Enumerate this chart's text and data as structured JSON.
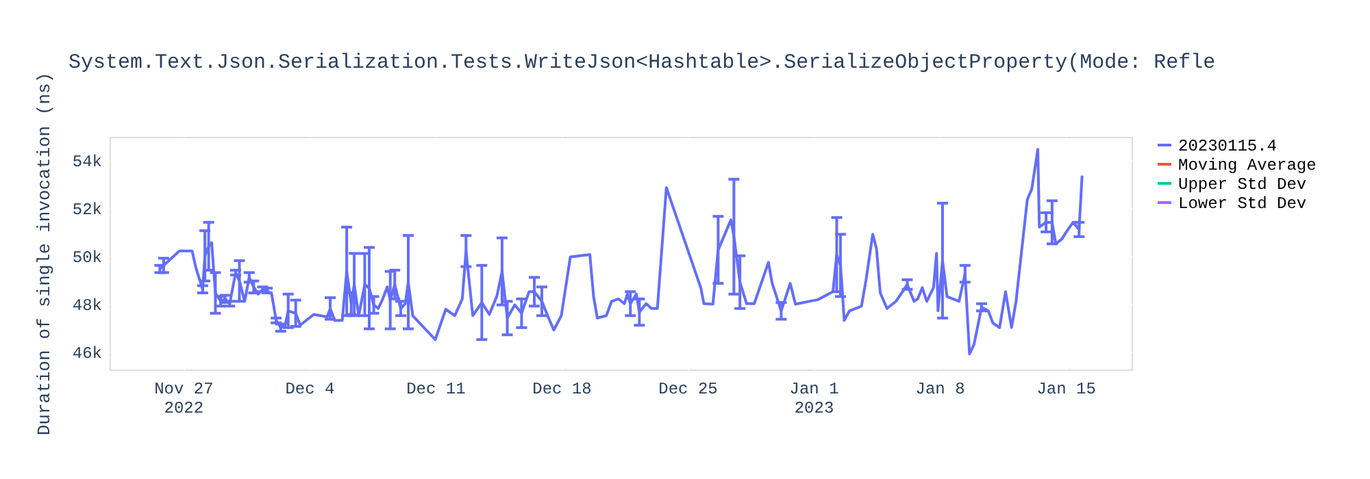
{
  "chart_data": {
    "type": "line",
    "title": "System.Text.Json.Serialization.Tests.WriteJson<Hashtable>.SerializeObjectProperty(Mode: Refle",
    "ylabel": "Duration of single invocation (ns)",
    "x": [
      "2022-11-25T17:00",
      "2022-11-25T22:00",
      "2022-11-26T19:00",
      "2022-11-27T12:00",
      "2022-11-27T17:00",
      "2022-11-28T02:00",
      "2022-11-28T05:00",
      "2022-11-28T10:00",
      "2022-11-28T14:00",
      "2022-11-28T19:00",
      "2022-11-29T02:00",
      "2022-11-29T08:00",
      "2022-11-29T14:00",
      "2022-11-29T22:00",
      "2022-11-30T03:00",
      "2022-11-30T10:00",
      "2022-11-30T16:00",
      "2022-11-30T22:00",
      "2022-12-01T04:00",
      "2022-12-01T10:00",
      "2022-12-01T16:00",
      "2022-12-01T22:00",
      "2022-12-02T04:00",
      "2022-12-02T10:00",
      "2022-12-02T16:00",
      "2022-12-02T20:00",
      "2022-12-03T06:00",
      "2022-12-03T12:00",
      "2022-12-04T06:00",
      "2022-12-05T00:00",
      "2022-12-05T04:00",
      "2022-12-05T10:00",
      "2022-12-05T20:00",
      "2022-12-06T02:00",
      "2022-12-06T08:00",
      "2022-12-06T12:00",
      "2022-12-06T18:00",
      "2022-12-07T02:00",
      "2022-12-07T08:00",
      "2022-12-07T14:00",
      "2022-12-07T20:00",
      "2022-12-08T02:00",
      "2022-12-08T08:00",
      "2022-12-08T12:00",
      "2022-12-08T18:00",
      "2022-12-09T02:00",
      "2022-12-09T08:00",
      "2022-12-09T12:00",
      "2022-12-09T18:00",
      "2022-12-11T00:00",
      "2022-12-11T14:00",
      "2022-12-12T02:00",
      "2022-12-12T12:00",
      "2022-12-12T17:00",
      "2022-12-13T02:00",
      "2022-12-13T14:00",
      "2022-12-14T00:00",
      "2022-12-14T10:00",
      "2022-12-14T17:00",
      "2022-12-15T00:00",
      "2022-12-15T10:00",
      "2022-12-15T19:00",
      "2022-12-16T05:00",
      "2022-12-16T12:00",
      "2022-12-16T22:00",
      "2022-12-17T07:00",
      "2022-12-17T14:00",
      "2022-12-18T00:00",
      "2022-12-18T12:00",
      "2022-12-19T14:00",
      "2022-12-19T19:00",
      "2022-12-20T00:00",
      "2022-12-20T12:00",
      "2022-12-20T19:00",
      "2022-12-21T04:00",
      "2022-12-21T12:00",
      "2022-12-21T16:00",
      "2022-12-21T20:00",
      "2022-12-22T04:00",
      "2022-12-22T08:00",
      "2022-12-22T17:00",
      "2022-12-23T00:00",
      "2022-12-23T08:00",
      "2022-12-23T20:00",
      "2022-12-25T18:00",
      "2022-12-25T22:00",
      "2022-12-26T10:00",
      "2022-12-26T17:00",
      "2022-12-27T10:00",
      "2022-12-27T14:00",
      "2022-12-27T22:00",
      "2022-12-28T07:00",
      "2022-12-28T17:00",
      "2022-12-29T12:00",
      "2022-12-29T17:00",
      "2022-12-30T05:00",
      "2022-12-30T17:00",
      "2022-12-31T00:00",
      "2023-01-01T06:00",
      "2023-01-02T02:00",
      "2023-01-02T07:00",
      "2023-01-02T12:00",
      "2023-01-02T14:00",
      "2023-01-02T17:00",
      "2023-01-03T00:00",
      "2023-01-03T08:00",
      "2023-01-03T16:00",
      "2023-01-03T22:00",
      "2023-01-04T07:00",
      "2023-01-04T12:00",
      "2023-01-04T17:00",
      "2023-01-05T02:00",
      "2023-01-05T14:00",
      "2023-01-06T05:00",
      "2023-01-06T14:00",
      "2023-01-06T19:00",
      "2023-01-07T01:00",
      "2023-01-07T07:00",
      "2023-01-07T16:00",
      "2023-01-07T20:00",
      "2023-01-07T22:00",
      "2023-01-08T04:00",
      "2023-01-08T10:00",
      "2023-01-09T02:00",
      "2023-01-09T10:00",
      "2023-01-09T16:00",
      "2023-01-09T22:00",
      "2023-01-10T08:00",
      "2023-01-10T17:00",
      "2023-01-10T23:00",
      "2023-01-11T08:00",
      "2023-01-11T16:00",
      "2023-01-12T00:00",
      "2023-01-12T06:00",
      "2023-01-12T21:00",
      "2023-01-13T03:00",
      "2023-01-13T11:00",
      "2023-01-13T13:00",
      "2023-01-13T22:00",
      "2023-01-14T06:00",
      "2023-01-14T11:00",
      "2023-01-14T19:00",
      "2023-01-15T01:00",
      "2023-01-15T10:00",
      "2023-01-15T18:00",
      "2023-01-15T22:00"
    ],
    "series": [
      {
        "name": "20230115.4",
        "color": "#636efa",
        "values": [
          49450,
          49600,
          50200,
          50200,
          49500,
          48600,
          50000,
          50400,
          50550,
          48450,
          48100,
          48200,
          48000,
          49300,
          48950,
          48100,
          49100,
          48700,
          48400,
          48600,
          48550,
          48400,
          47300,
          47000,
          47100,
          47700,
          47600,
          47100,
          47550,
          47450,
          47800,
          47300,
          47300,
          49350,
          48000,
          48800,
          47500,
          48800,
          48650,
          47950,
          47800,
          48200,
          48700,
          48150,
          48800,
          47800,
          48000,
          48900,
          47500,
          46500,
          47770,
          47500,
          48200,
          50200,
          47500,
          48050,
          47550,
          48300,
          49350,
          47400,
          47950,
          47600,
          48500,
          48500,
          48100,
          47400,
          46900,
          47500,
          49950,
          50050,
          48300,
          47400,
          47500,
          48100,
          48200,
          48000,
          48400,
          48000,
          48400,
          47650,
          48000,
          47800,
          47800,
          52850,
          48650,
          48000,
          47980,
          50250,
          51500,
          50800,
          48900,
          48000,
          48000,
          49730,
          48850,
          47700,
          48850,
          47980,
          48170,
          48500,
          50050,
          49600,
          48750,
          47300,
          47700,
          47800,
          47900,
          48980,
          50900,
          50300,
          48450,
          47800,
          48100,
          48800,
          48100,
          48200,
          48670,
          48100,
          48670,
          50100,
          47700,
          49800,
          48300,
          48100,
          49250,
          45900,
          46300,
          47850,
          47700,
          47200,
          47000,
          48500,
          47000,
          48100,
          52350,
          52800,
          54450,
          51200,
          51400,
          51400,
          50500,
          50700,
          51000,
          51400,
          51100,
          53350
        ],
        "errors": [
          150,
          300,
          null,
          null,
          null,
          150,
          1050,
          1000,
          null,
          850,
          200,
          150,
          100,
          100,
          850,
          null,
          200,
          250,
          null,
          100,
          100,
          null,
          100,
          150,
          null,
          700,
          550,
          null,
          null,
          null,
          450,
          null,
          null,
          1850,
          450,
          1300,
          null,
          1300,
          1700,
          350,
          null,
          null,
          null,
          1200,
          600,
          300,
          null,
          1950,
          null,
          null,
          null,
          null,
          null,
          650,
          null,
          1550,
          null,
          null,
          1400,
          700,
          null,
          600,
          null,
          600,
          600,
          null,
          null,
          null,
          null,
          null,
          null,
          null,
          null,
          null,
          null,
          null,
          null,
          500,
          null,
          550,
          null,
          null,
          null,
          null,
          null,
          null,
          null,
          1400,
          null,
          2400,
          1100,
          null,
          null,
          null,
          null,
          350,
          null,
          null,
          null,
          null,
          1550,
          1300,
          null,
          null,
          null,
          null,
          null,
          null,
          null,
          null,
          null,
          null,
          null,
          200,
          null,
          null,
          null,
          null,
          null,
          null,
          null,
          2400,
          null,
          null,
          350,
          null,
          null,
          150,
          null,
          null,
          null,
          null,
          null,
          null,
          null,
          null,
          null,
          null,
          400,
          900,
          null,
          null,
          null,
          null,
          300,
          null
        ]
      },
      {
        "name": "Moving Average",
        "color": "#ef553b",
        "values": [
          null,
          null,
          null,
          null,
          null,
          null,
          null,
          null,
          null,
          null,
          null,
          null,
          null,
          null,
          null,
          null,
          null,
          null,
          null,
          null,
          null,
          null,
          null,
          null,
          null,
          null,
          null,
          null,
          null,
          null,
          null,
          null,
          null,
          null,
          null,
          null,
          null,
          null,
          null,
          null,
          null,
          null,
          null,
          null,
          null,
          null,
          null,
          null,
          null,
          null,
          null,
          null,
          null,
          null,
          null,
          null,
          null,
          null,
          null,
          null,
          null,
          null,
          null,
          null,
          null,
          null,
          null,
          null,
          null,
          null,
          null,
          null,
          null,
          null,
          null,
          null,
          null,
          null,
          null,
          null,
          null,
          null,
          null,
          null,
          null,
          null,
          null,
          null,
          null,
          null,
          null,
          null,
          null,
          null,
          null,
          null,
          null,
          null,
          null,
          null,
          null,
          null,
          null,
          null,
          null,
          null,
          null,
          null,
          null,
          null,
          null,
          null,
          null,
          null,
          null,
          null,
          null,
          null,
          null,
          null,
          null,
          null,
          null,
          null,
          null,
          null,
          null,
          null,
          null,
          null,
          null,
          null,
          null,
          null,
          null,
          null,
          null,
          null,
          null,
          null,
          null,
          null,
          null,
          null,
          null,
          null
        ]
      },
      {
        "name": "Upper Std Dev",
        "color": "#00cc96",
        "values": [
          null,
          null,
          null,
          null,
          null,
          null,
          null,
          null,
          null,
          null,
          null,
          null,
          null,
          null,
          null,
          null,
          null,
          null,
          null,
          null,
          null,
          null,
          null,
          null,
          null,
          null,
          null,
          null,
          null,
          null,
          null,
          null,
          null,
          null,
          null,
          null,
          null,
          null,
          null,
          null,
          null,
          null,
          null,
          null,
          null,
          null,
          null,
          null,
          null,
          null,
          null,
          null,
          null,
          null,
          null,
          null,
          null,
          null,
          null,
          null,
          null,
          null,
          null,
          null,
          null,
          null,
          null,
          null,
          null,
          null,
          null,
          null,
          null,
          null,
          null,
          null,
          null,
          null,
          null,
          null,
          null,
          null,
          null,
          null,
          null,
          null,
          null,
          null,
          null,
          null,
          null,
          null,
          null,
          null,
          null,
          null,
          null,
          null,
          null,
          null,
          null,
          null,
          null,
          null,
          null,
          null,
          null,
          null,
          null,
          null,
          null,
          null,
          null,
          null,
          null,
          null,
          null,
          null,
          null,
          null,
          null,
          null,
          null,
          null,
          null,
          null,
          null,
          null,
          null,
          null,
          null,
          null,
          null,
          null,
          null,
          null,
          null,
          null,
          null,
          null,
          null,
          null,
          null,
          null,
          null,
          null
        ]
      },
      {
        "name": "Lower Std Dev",
        "color": "#ab63fa",
        "values": [
          null,
          null,
          null,
          null,
          null,
          null,
          null,
          null,
          null,
          null,
          null,
          null,
          null,
          null,
          null,
          null,
          null,
          null,
          null,
          null,
          null,
          null,
          null,
          null,
          null,
          null,
          null,
          null,
          null,
          null,
          null,
          null,
          null,
          null,
          null,
          null,
          null,
          null,
          null,
          null,
          null,
          null,
          null,
          null,
          null,
          null,
          null,
          null,
          null,
          null,
          null,
          null,
          null,
          null,
          null,
          null,
          null,
          null,
          null,
          null,
          null,
          null,
          null,
          null,
          null,
          null,
          null,
          null,
          null,
          null,
          null,
          null,
          null,
          null,
          null,
          null,
          null,
          null,
          null,
          null,
          null,
          null,
          null,
          null,
          null,
          null,
          null,
          null,
          null,
          null,
          null,
          null,
          null,
          null,
          null,
          null,
          null,
          null,
          null,
          null,
          null,
          null,
          null,
          null,
          null,
          null,
          null,
          null,
          null,
          null,
          null,
          null,
          null,
          null,
          null,
          null,
          null,
          null,
          null,
          null,
          null,
          null,
          null,
          null,
          null,
          null,
          null,
          null,
          null,
          null,
          null,
          null,
          null,
          null,
          null,
          null,
          null,
          null,
          null,
          null,
          null,
          null,
          null,
          null,
          null,
          null
        ]
      }
    ],
    "xlim": [
      "2022-11-22T22:00",
      "2023-01-18T16:00"
    ],
    "xticks": [
      {
        "value": "2022-11-27",
        "label": "Nov 27\n2022"
      },
      {
        "value": "2022-12-04",
        "label": "Dec 4"
      },
      {
        "value": "2022-12-11",
        "label": "Dec 11"
      },
      {
        "value": "2022-12-18",
        "label": "Dec 18"
      },
      {
        "value": "2022-12-25",
        "label": "Dec 25"
      },
      {
        "value": "2023-01-01",
        "label": "Jan 1\n2023"
      },
      {
        "value": "2023-01-08",
        "label": "Jan 8"
      },
      {
        "value": "2023-01-15",
        "label": "Jan 15"
      }
    ],
    "ylim": [
      45250,
      54970
    ],
    "yticks": [
      {
        "value": 46000,
        "label": "46k"
      },
      {
        "value": 48000,
        "label": "48k"
      },
      {
        "value": 50000,
        "label": "50k"
      },
      {
        "value": 52000,
        "label": "52k"
      },
      {
        "value": 54000,
        "label": "54k"
      }
    ],
    "grid": true,
    "legend": "top right",
    "marker": "none",
    "line_style": "solid"
  }
}
